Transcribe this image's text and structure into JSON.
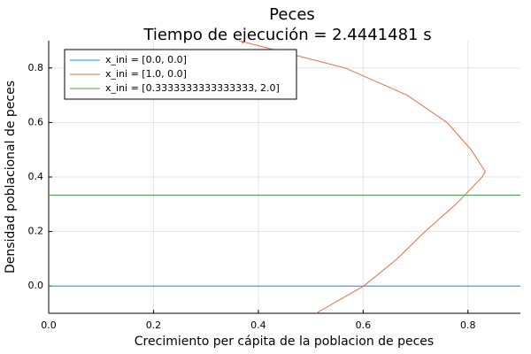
{
  "chart_data": {
    "type": "line",
    "title": "Peces",
    "subtitle": "Tiempo de ejecución = 2.4441481 s",
    "x_label": "Crecimiento per cápita de la poblacion de peces",
    "y_label": "Densidad poblacional de peces",
    "xlim": [
      0,
      0.9
    ],
    "ylim": [
      -0.1,
      0.9
    ],
    "xticks": [
      {
        "value": 0,
        "label": "0.0"
      },
      0.2,
      0.4,
      0.6,
      0.8
    ],
    "yticks": [
      {
        "value": 0,
        "label": "0.0"
      },
      0.2,
      0.4,
      0.6,
      0.8
    ],
    "grid": true,
    "legend": "top-left",
    "series": [
      {
        "name": "x_ini = [0.0, 0.0]",
        "color": "#009af9",
        "x": [
          0,
          0.9
        ],
        "values": [
          0,
          0
        ]
      },
      {
        "name": "x_ini = [1.0, 0.0]",
        "color": "#e26f46",
        "x": [
          0.51,
          0.601,
          0.665,
          0.718,
          0.777,
          0.827,
          0.833,
          0.806,
          0.76,
          0.684,
          0.566,
          0.464,
          0.363
        ],
        "values": [
          -0.1,
          0,
          0.1,
          0.2,
          0.3,
          0.4,
          0.42,
          0.5,
          0.6,
          0.7,
          0.8,
          0.85,
          0.9
        ]
      },
      {
        "name": "x_ini = [0.3333333333333333, 2.0]",
        "color": "#3da44d",
        "x": [
          0,
          0.9
        ],
        "values": [
          0.3333,
          0.3333
        ]
      }
    ]
  }
}
